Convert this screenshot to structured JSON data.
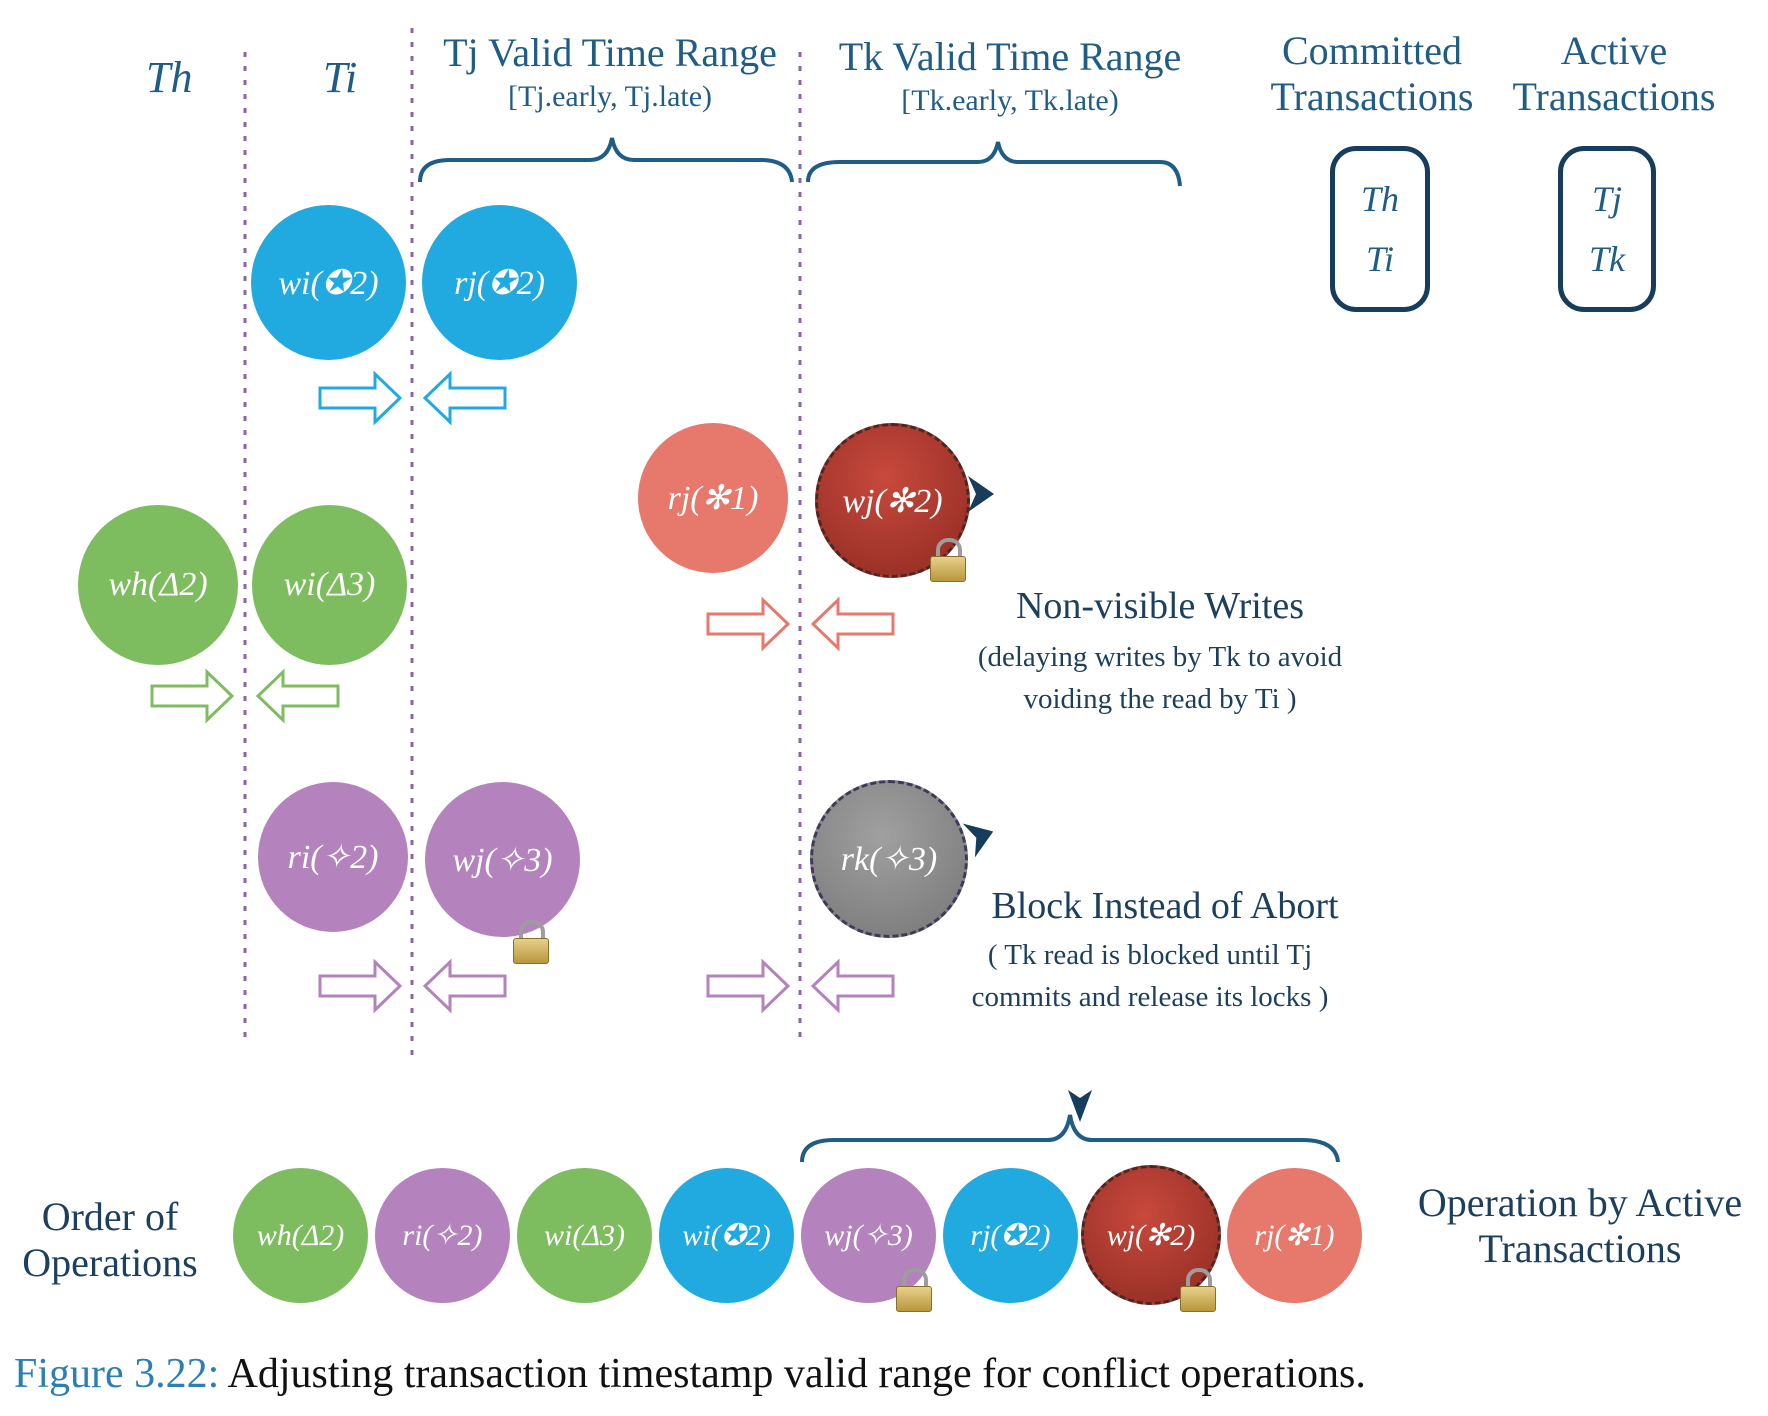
{
  "headers": {
    "th": "Th",
    "ti": "Ti"
  },
  "ranges": {
    "tj_title": "Tj Valid Time Range",
    "tj_sub": "[Tj.early, Tj.late)",
    "tk_title": "Tk Valid Time Range",
    "tk_sub": "[Tk.early, Tk.late)"
  },
  "status": {
    "committed_title": "Committed Transactions",
    "committed_items": [
      "Th",
      "Ti"
    ],
    "active_title": "Active Transactions",
    "active_items": [
      "Tj",
      "Tk"
    ]
  },
  "ops": {
    "wi_star": "wi(✪2)",
    "rj_star": "rj(✪2)",
    "rj_ast": "rj(✻1)",
    "wj_ast": "wj(✻2)",
    "wh_delta": "wh(Δ2)",
    "wi_delta": "wi(Δ3)",
    "ri_spark": "ri(✧2)",
    "wj_spark": "wj(✧3)",
    "rk_spark": "rk(✧3)"
  },
  "notes": {
    "nonvisible_title": "Non-visible Writes",
    "nonvisible_line1": "(delaying writes by Tk to avoid",
    "nonvisible_line2": "voiding the read by Ti )",
    "block_title": "Block Instead of Abort",
    "block_line1": "( Tk read is blocked until Tj",
    "block_line2": "commits and release its locks )"
  },
  "order": {
    "label_line1": "Order of",
    "label_line2": "Operations",
    "ops": [
      "wh(Δ2)",
      "ri(✧2)",
      "wi(Δ3)",
      "wi(✪2)",
      "wj(✧3)",
      "rj(✪2)",
      "wj(✻2)",
      "rj(✻1)"
    ],
    "active_label_line1": "Operation by Active",
    "active_label_line2": "Transactions"
  },
  "caption": {
    "figure": "Figure 3.22:",
    "text": " Adjusting transaction timestamp valid range for conflict operations."
  },
  "colors": {
    "blue": "#21aae0",
    "green": "#7ebd5f",
    "purple": "#b482bd",
    "salmon": "#e7786c",
    "darkred": "#a8372c",
    "gray": "#8a8a8a",
    "text": "#1f5d86"
  }
}
